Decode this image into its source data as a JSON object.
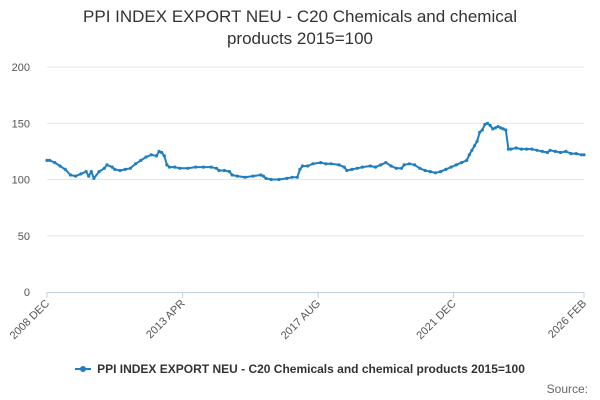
{
  "title": {
    "line1": "PPI INDEX EXPORT NEU - C20 Chemicals and chemical",
    "line2": "products 2015=100"
  },
  "credit": "Source:",
  "colors": {
    "series": "#1f7fc0",
    "grid": "#e6e6e6",
    "axis": "#c0d0e0",
    "text": "#333333"
  },
  "chart_data": {
    "type": "line",
    "title": "PPI INDEX EXPORT NEU - C20 Chemicals and chemical products 2015=100",
    "xlabel": "",
    "ylabel": "",
    "ylim": [
      0,
      200
    ],
    "yticks": [
      0,
      50,
      100,
      150,
      200
    ],
    "xlim": [
      "2008-12",
      "2026-02"
    ],
    "xticks": [
      "2008 DEC",
      "2013 APR",
      "2017 AUG",
      "2021 DEC",
      "2026 FEB"
    ],
    "grid": true,
    "legend_position": "bottom",
    "series": [
      {
        "name": "PPI INDEX EXPORT NEU - C20 Chemicals and chemical products 2015=100",
        "points": [
          [
            "2008-12",
            117
          ],
          [
            "2009-01",
            117
          ],
          [
            "2009-03",
            115
          ],
          [
            "2009-05",
            112
          ],
          [
            "2009-07",
            109
          ],
          [
            "2009-09",
            104
          ],
          [
            "2009-11",
            103
          ],
          [
            "2010-01",
            105
          ],
          [
            "2010-03",
            107
          ],
          [
            "2010-04",
            103
          ],
          [
            "2010-05",
            107
          ],
          [
            "2010-06",
            101
          ],
          [
            "2010-08",
            107
          ],
          [
            "2010-10",
            110
          ],
          [
            "2010-11",
            113
          ],
          [
            "2011-01",
            111
          ],
          [
            "2011-02",
            109
          ],
          [
            "2011-04",
            108
          ],
          [
            "2011-06",
            109
          ],
          [
            "2011-08",
            110
          ],
          [
            "2011-10",
            114
          ],
          [
            "2011-12",
            117
          ],
          [
            "2012-02",
            120
          ],
          [
            "2012-04",
            122
          ],
          [
            "2012-06",
            121
          ],
          [
            "2012-07",
            125
          ],
          [
            "2012-08",
            124
          ],
          [
            "2012-09",
            121
          ],
          [
            "2012-10",
            113
          ],
          [
            "2012-11",
            111
          ],
          [
            "2013-01",
            111
          ],
          [
            "2013-03",
            110
          ],
          [
            "2013-06",
            110
          ],
          [
            "2013-09",
            111
          ],
          [
            "2013-12",
            111
          ],
          [
            "2014-03",
            111
          ],
          [
            "2014-05",
            110
          ],
          [
            "2014-06",
            108
          ],
          [
            "2014-08",
            108
          ],
          [
            "2014-10",
            107
          ],
          [
            "2014-11",
            104
          ],
          [
            "2015-01",
            103
          ],
          [
            "2015-04",
            102
          ],
          [
            "2015-07",
            103
          ],
          [
            "2015-10",
            104
          ],
          [
            "2015-11",
            103
          ],
          [
            "2015-12",
            101
          ],
          [
            "2016-02",
            100
          ],
          [
            "2016-05",
            100
          ],
          [
            "2016-08",
            101
          ],
          [
            "2016-10",
            102
          ],
          [
            "2016-12",
            102
          ],
          [
            "2017-01",
            109
          ],
          [
            "2017-02",
            112
          ],
          [
            "2017-04",
            112
          ],
          [
            "2017-06",
            114
          ],
          [
            "2017-09",
            115
          ],
          [
            "2017-11",
            114
          ],
          [
            "2018-01",
            114
          ],
          [
            "2018-04",
            113
          ],
          [
            "2018-06",
            111
          ],
          [
            "2018-07",
            108
          ],
          [
            "2018-09",
            109
          ],
          [
            "2018-11",
            110
          ],
          [
            "2019-01",
            111
          ],
          [
            "2019-04",
            112
          ],
          [
            "2019-06",
            111
          ],
          [
            "2019-08",
            113
          ],
          [
            "2019-10",
            115
          ],
          [
            "2019-12",
            112
          ],
          [
            "2020-02",
            110
          ],
          [
            "2020-04",
            110
          ],
          [
            "2020-05",
            113
          ],
          [
            "2020-07",
            114
          ],
          [
            "2020-09",
            113
          ],
          [
            "2020-11",
            110
          ],
          [
            "2021-01",
            108
          ],
          [
            "2021-03",
            107
          ],
          [
            "2021-05",
            106
          ],
          [
            "2021-07",
            107
          ],
          [
            "2021-09",
            109
          ],
          [
            "2021-11",
            111
          ],
          [
            "2022-01",
            113
          ],
          [
            "2022-03",
            115
          ],
          [
            "2022-05",
            117
          ],
          [
            "2022-06",
            122
          ],
          [
            "2022-07",
            126
          ],
          [
            "2022-08",
            130
          ],
          [
            "2022-09",
            134
          ],
          [
            "2022-10",
            142
          ],
          [
            "2022-11",
            144
          ],
          [
            "2022-12",
            149
          ],
          [
            "2023-01",
            150
          ],
          [
            "2023-02",
            148
          ],
          [
            "2023-03",
            145
          ],
          [
            "2023-04",
            146
          ],
          [
            "2023-05",
            147
          ],
          [
            "2023-06",
            146
          ],
          [
            "2023-07",
            145
          ],
          [
            "2023-08",
            144
          ],
          [
            "2023-09",
            127
          ],
          [
            "2023-10",
            127
          ],
          [
            "2023-12",
            128
          ],
          [
            "2024-02",
            127
          ],
          [
            "2024-04",
            127
          ],
          [
            "2024-06",
            127
          ],
          [
            "2024-08",
            126
          ],
          [
            "2024-10",
            125
          ],
          [
            "2024-12",
            124
          ],
          [
            "2025-01",
            126
          ],
          [
            "2025-03",
            125
          ],
          [
            "2025-05",
            124
          ],
          [
            "2025-07",
            125
          ],
          [
            "2025-09",
            123
          ],
          [
            "2025-11",
            123
          ],
          [
            "2026-01",
            122
          ],
          [
            "2026-02",
            122
          ]
        ]
      }
    ]
  }
}
